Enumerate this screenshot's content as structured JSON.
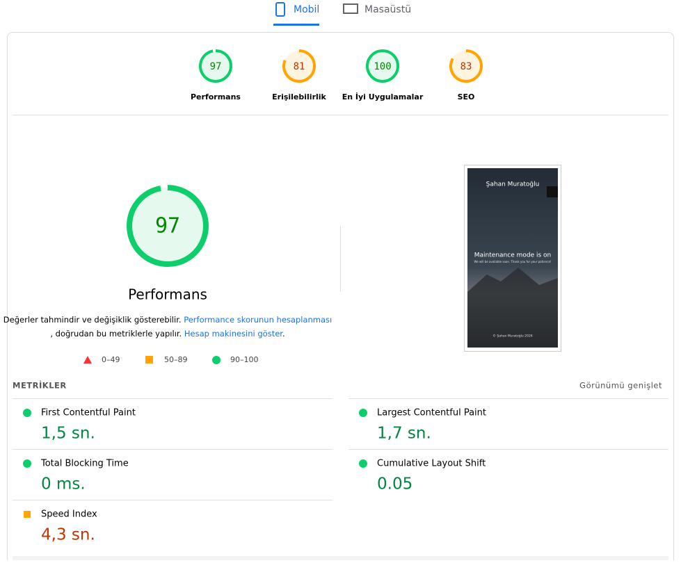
{
  "tabs": [
    "Mobil",
    "Masaüstü"
  ],
  "scores": [
    {
      "label": "Performans",
      "value": 97,
      "color": "#0cce6b",
      "text_color": "#008800",
      "fill": "#e6f9ee"
    },
    {
      "label": "Erişilebilirlik",
      "value": 81,
      "color": "#ffa400",
      "text_color": "#c33300",
      "fill": "#fff4e0"
    },
    {
      "label": "En İyi Uygulamalar",
      "value": 100,
      "color": "#0cce6b",
      "text_color": "#008800",
      "fill": "#e6f9ee"
    },
    {
      "label": "SEO",
      "value": 83,
      "color": "#ffa400",
      "text_color": "#c33300",
      "fill": "#fff4e0"
    }
  ],
  "main": {
    "value": 97,
    "label": "Performans",
    "description": [
      "Değerler tahmindir ve değişiklik gösterebilir.",
      "Performance skorunun hesaplanması",
      ", doğrudan bu metriklerle yapılır.",
      "Hesap makinesini göster",
      "."
    ],
    "legend": [
      "0–49",
      "50–89",
      "90–100"
    ]
  },
  "preview": {
    "title": "Şahan Muratoğlu",
    "heading": "Maintenance mode is on",
    "text": "We will be available soon. Thank you for your patience!",
    "footer": "© Şahan Muratoğlu 2026"
  },
  "metrics": {
    "title": "METRİKLER",
    "expand": "Görünümü genişlet",
    "items": [
      {
        "name": "First Contentful Paint",
        "value": "1,5 sn.",
        "color": "#0cce6b",
        "text_color": "#018642"
      },
      {
        "name": "Largest Contentful Paint",
        "value": "1,7 sn.",
        "color": "#0cce6b",
        "text_color": "#018642"
      },
      {
        "name": "Total Blocking Time",
        "value": "0 ms.",
        "color": "#0cce6b",
        "text_color": "#018642"
      },
      {
        "name": "Cumulative Layout Shift",
        "value": "0.05",
        "color": "#0cce6b",
        "text_color": "#018642"
      },
      {
        "name": "Speed Index",
        "value": "4,3 sn.",
        "color": "#ffa400",
        "text_color": "#c33300"
      }
    ]
  }
}
